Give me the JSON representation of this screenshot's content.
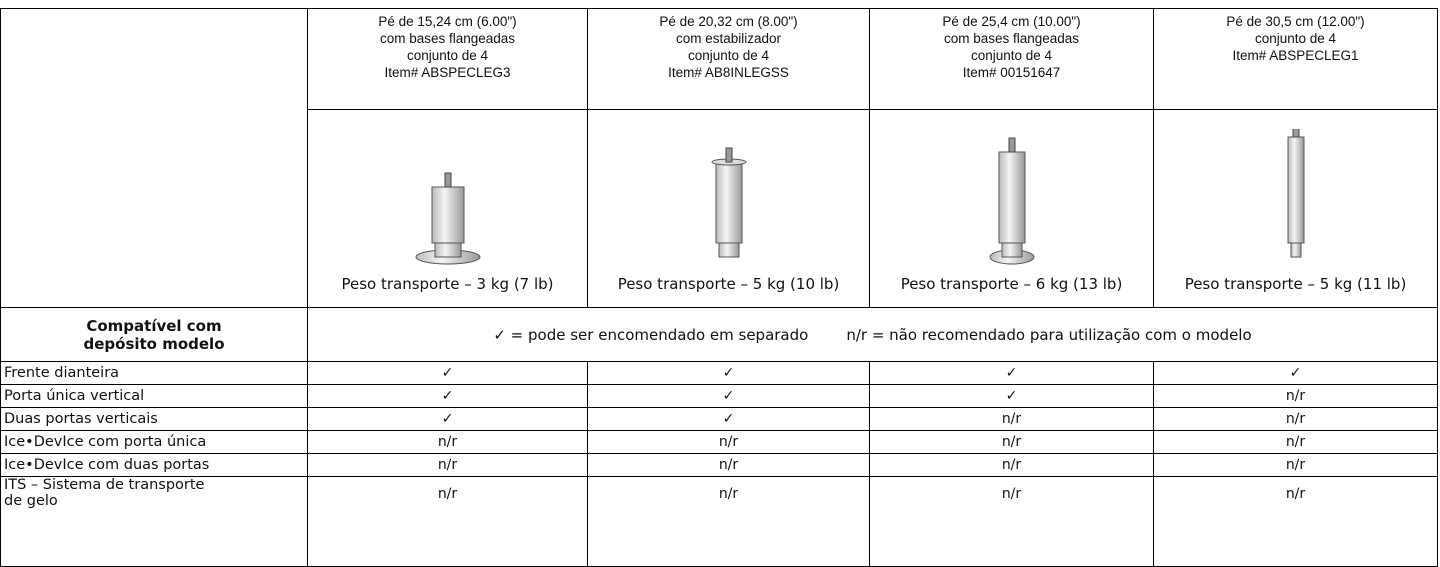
{
  "columns": [
    {
      "lines": [
        "Pé de 15,24 cm (6.00\")",
        "com bases flangeadas",
        "conjunto de 4",
        "Item# ABSPECLEG3"
      ],
      "weight": "Peso transporte – 3 kg (7 lb)"
    },
    {
      "lines": [
        "Pé de 20,32 cm (8.00\")",
        "com estabilizador",
        "conjunto de 4",
        "Item# AB8INLEGSS"
      ],
      "weight": "Peso transporte – 5 kg (10 lb)"
    },
    {
      "lines": [
        "Pé de 25,4 cm (10.00\")",
        "com bases flangeadas",
        "conjunto de 4",
        "Item# 00151647"
      ],
      "weight": "Peso transporte – 6 kg (13 lb)"
    },
    {
      "lines": [
        "Pé de 30,5 cm (12.00\")",
        "conjunto de 4",
        "Item# ABSPECLEG1"
      ],
      "weight": "Peso transporte – 5 kg (11 lb)"
    }
  ],
  "legend": {
    "label": [
      "Compatível com",
      "depósito modelo"
    ],
    "text": [
      "✓ = pode ser encomendado em separado",
      "n/r = não recomendado para utilização com o modelo"
    ]
  },
  "rows": [
    {
      "label": "Frente dianteira",
      "cells": [
        "✓",
        "✓",
        "✓",
        "✓"
      ]
    },
    {
      "label": "Porta única vertical",
      "cells": [
        "✓",
        "✓",
        "✓",
        "n/r"
      ]
    },
    {
      "label": "Duas portas verticais",
      "cells": [
        "✓",
        "✓",
        "n/r",
        "n/r"
      ]
    },
    {
      "label": "Ice•DevIce com porta única",
      "cells": [
        "n/r",
        "n/r",
        "n/r",
        "n/r"
      ]
    },
    {
      "label": "Ice•DevIce com duas portas",
      "cells": [
        "n/r",
        "n/r",
        "n/r",
        "n/r"
      ]
    },
    {
      "label": "ITS – Sistema de transporte de gelo",
      "cells": [
        "n/r",
        "n/r",
        "n/r",
        "n/r"
      ]
    }
  ]
}
